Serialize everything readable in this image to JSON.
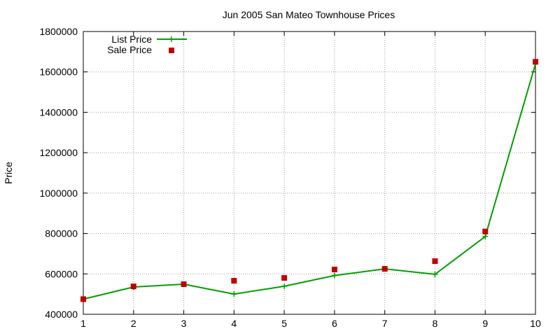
{
  "chart_data": {
    "type": "line",
    "title": "Jun 2005 San Mateo Townhouse Prices",
    "xlabel": "",
    "ylabel": "Price",
    "x": [
      1,
      2,
      3,
      4,
      5,
      6,
      7,
      8,
      9,
      10
    ],
    "xlim": [
      1,
      10
    ],
    "ylim": [
      400000,
      1800000
    ],
    "xticks": [
      "1",
      "2",
      "3",
      "4",
      "5",
      "6",
      "7",
      "8",
      "9",
      "10"
    ],
    "yticks": [
      "400000",
      "600000",
      "800000",
      "1000000",
      "1200000",
      "1400000",
      "1600000",
      "1800000"
    ],
    "grid": true,
    "legend_position": "top-left",
    "series": [
      {
        "name": "List Price",
        "style": "line-with-plus-markers",
        "color": "#00a000",
        "values": [
          475000,
          535000,
          549000,
          500000,
          539000,
          592000,
          625000,
          598000,
          785000,
          1640000
        ]
      },
      {
        "name": "Sale Price",
        "style": "square-markers",
        "color": "#c00000",
        "values": [
          475000,
          538000,
          549000,
          566000,
          580000,
          622000,
          625000,
          663000,
          810000,
          1650000
        ]
      }
    ]
  }
}
